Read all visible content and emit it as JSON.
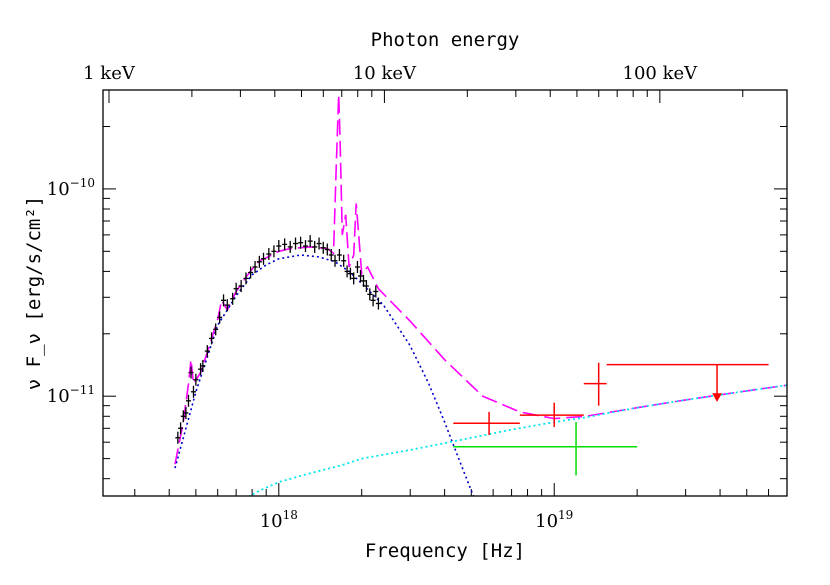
{
  "chart_data": {
    "type": "scatter",
    "title": "",
    "xlabel": "Frequency [Hz]",
    "ylabel": "ν F_ν [erg/s/cm²]",
    "top_xlabel": "Photon energy",
    "x_scale": "log",
    "y_scale": "log",
    "xlim": [
      2.3e+17,
      7e+19
    ],
    "ylim": [
      3.3e-12,
      3e-10
    ],
    "x_tick_labels": [
      {
        "value": 1e+18,
        "base": "10",
        "exp": "18"
      },
      {
        "value": 1e+19,
        "base": "10",
        "exp": "19"
      }
    ],
    "y_tick_labels": [
      {
        "value": 1e-11,
        "base": "10",
        "exp": "−11"
      },
      {
        "value": 1e-10,
        "base": "10",
        "exp": "−10"
      }
    ],
    "top_tick_labels": [
      {
        "value_hz": 2.418e+17,
        "label": "1 keV"
      },
      {
        "value_hz": 2.418e+18,
        "label": "10 keV"
      },
      {
        "value_hz": 2.418e+19,
        "label": "100 keV"
      }
    ],
    "colors": {
      "total_model": "#ff00ff",
      "blue_component": "#0000cc",
      "cyan_component": "#00e5ee",
      "red_points": "#ff0000",
      "green_point": "#00dd00",
      "black_points": "#000000"
    },
    "series": [
      {
        "kind": "total-model-dashed",
        "points": [
          [
            4.2e+17,
            4.7e-12
          ],
          [
            4.5e+17,
            7.5e-12
          ],
          [
            4.7e+17,
            1.15e-11
          ],
          [
            4.8e+17,
            1.5e-11
          ],
          [
            4.9e+17,
            1.15e-11
          ],
          [
            5.2e+17,
            1.3e-11
          ],
          [
            5.6e+17,
            1.75e-11
          ],
          [
            6e+17,
            2.35e-11
          ],
          [
            6.2e+17,
            2.9e-11
          ],
          [
            6.5e+17,
            2.6e-11
          ],
          [
            7e+17,
            3.2e-11
          ],
          [
            7.6e+17,
            3.75e-11
          ],
          [
            8e+17,
            4.1e-11
          ],
          [
            8.5e+17,
            4.5e-11
          ],
          [
            9e+17,
            4.65e-11
          ],
          [
            1e+18,
            5e-11
          ],
          [
            1.1e+18,
            5.15e-11
          ],
          [
            1.3e+18,
            5.25e-11
          ],
          [
            1.5e+18,
            5.15e-11
          ],
          [
            1.58e+18,
            4.9e-11
          ],
          [
            1.62e+18,
            1.4e-10
          ],
          [
            1.65e+18,
            2.85e-10
          ],
          [
            1.67e+18,
            1.7e-10
          ],
          [
            1.7e+18,
            6e-11
          ],
          [
            1.75e+18,
            7.5e-11
          ],
          [
            1.8e+18,
            4.2e-11
          ],
          [
            1.87e+18,
            4.8e-11
          ],
          [
            1.91e+18,
            8.5e-11
          ],
          [
            1.95e+18,
            6e-11
          ],
          [
            2e+18,
            3.9e-11
          ],
          [
            2.1e+18,
            4.2e-11
          ],
          [
            2.3e+18,
            3.3e-11
          ],
          [
            3e+18,
            2.3e-11
          ],
          [
            4e+18,
            1.5e-11
          ],
          [
            5.5e+18,
            1e-11
          ],
          [
            7.5e+18,
            8.4e-12
          ],
          [
            1e+19,
            7.8e-12
          ],
          [
            1.3e+19,
            8e-12
          ],
          [
            2e+19,
            8.8e-12
          ],
          [
            3e+19,
            9.6e-12
          ],
          [
            5e+19,
            1.06e-11
          ],
          [
            7e+19,
            1.13e-11
          ]
        ]
      },
      {
        "kind": "blue-component-dotted",
        "points": [
          [
            4.2e+17,
            4.5e-12
          ],
          [
            5e+17,
            1.05e-11
          ],
          [
            6e+17,
            2.2e-11
          ],
          [
            7e+17,
            3.05e-11
          ],
          [
            8e+17,
            3.85e-11
          ],
          [
            9e+17,
            4.3e-11
          ],
          [
            1e+18,
            4.6e-11
          ],
          [
            1.2e+18,
            4.8e-11
          ],
          [
            1.4e+18,
            4.7e-11
          ],
          [
            1.6e+18,
            4.45e-11
          ],
          [
            1.8e+18,
            4e-11
          ],
          [
            2e+18,
            3.5e-11
          ],
          [
            2.4e+18,
            2.75e-11
          ],
          [
            3e+18,
            1.75e-11
          ],
          [
            3.5e+18,
            1.15e-11
          ],
          [
            4e+18,
            7.5e-12
          ],
          [
            4.5e+18,
            5e-12
          ],
          [
            5e+18,
            3.5e-12
          ],
          [
            5.3e+18,
            2.9e-12
          ]
        ]
      },
      {
        "kind": "cyan-component-dotted",
        "points": [
          [
            7.2e+17,
            3.1e-12
          ],
          [
            8.5e+17,
            3.5e-12
          ],
          [
            1e+18,
            3.85e-12
          ],
          [
            1.3e+18,
            4.25e-12
          ],
          [
            1.7e+18,
            4.65e-12
          ],
          [
            2e+18,
            5e-12
          ],
          [
            3e+18,
            5.5e-12
          ],
          [
            5e+18,
            6.3e-12
          ],
          [
            7e+18,
            6.9e-12
          ],
          [
            1e+19,
            7.5e-12
          ],
          [
            1.3e+19,
            7.9e-12
          ],
          [
            2e+19,
            8.8e-12
          ],
          [
            3e+19,
            9.6e-12
          ],
          [
            5e+19,
            1.06e-11
          ],
          [
            7e+19,
            1.13e-11
          ]
        ]
      },
      {
        "kind": "black-data-points",
        "points": [
          [
            4.3e+17,
            6.3e-12
          ],
          [
            4.4e+17,
            7e-12
          ],
          [
            4.5e+17,
            8e-12
          ],
          [
            4.6e+17,
            8.3e-12
          ],
          [
            4.7e+17,
            9.5e-12
          ],
          [
            4.8e+17,
            1.3e-11
          ],
          [
            4.9e+17,
            1.05e-11
          ],
          [
            5e+17,
            1.2e-11
          ],
          [
            5.2e+17,
            1.35e-11
          ],
          [
            5.3e+17,
            1.4e-11
          ],
          [
            5.5e+17,
            1.65e-11
          ],
          [
            5.7e+17,
            1.9e-11
          ],
          [
            5.9e+17,
            2.1e-11
          ],
          [
            6.1e+17,
            2.4e-11
          ],
          [
            6.3e+17,
            2.9e-11
          ],
          [
            6.5e+17,
            2.75e-11
          ],
          [
            6.8e+17,
            2.95e-11
          ],
          [
            7e+17,
            3.3e-11
          ],
          [
            7.3e+17,
            3.4e-11
          ],
          [
            7.6e+17,
            3.7e-11
          ],
          [
            7.9e+17,
            3.95e-11
          ],
          [
            8.2e+17,
            4.2e-11
          ],
          [
            8.5e+17,
            4.45e-11
          ],
          [
            8.8e+17,
            4.6e-11
          ],
          [
            9.2e+17,
            4.85e-11
          ],
          [
            9.6e+17,
            5e-11
          ],
          [
            1e+18,
            5.3e-11
          ],
          [
            1.05e+18,
            5.4e-11
          ],
          [
            1.1e+18,
            5.25e-11
          ],
          [
            1.15e+18,
            5.45e-11
          ],
          [
            1.2e+18,
            5.5e-11
          ],
          [
            1.25e+18,
            5.3e-11
          ],
          [
            1.3e+18,
            5.6e-11
          ],
          [
            1.35e+18,
            5.25e-11
          ],
          [
            1.4e+18,
            5.45e-11
          ],
          [
            1.45e+18,
            5.2e-11
          ],
          [
            1.5e+18,
            5.1e-11
          ],
          [
            1.55e+18,
            4.8e-11
          ],
          [
            1.6e+18,
            4.5e-11
          ],
          [
            1.66e+18,
            4.8e-11
          ],
          [
            1.72e+18,
            4.5e-11
          ],
          [
            1.77e+18,
            4e-11
          ],
          [
            1.82e+18,
            3.9e-11
          ],
          [
            1.87e+18,
            3.7e-11
          ],
          [
            1.93e+18,
            4.2e-11
          ],
          [
            1.98e+18,
            3.8e-11
          ],
          [
            2.03e+18,
            3.6e-11
          ],
          [
            2.08e+18,
            3.4e-11
          ],
          [
            2.14e+18,
            3.1e-11
          ],
          [
            2.2e+18,
            2.9e-11
          ],
          [
            2.25e+18,
            3.2e-11
          ],
          [
            2.3e+18,
            2.8e-11
          ]
        ]
      }
    ],
    "red_points": [
      {
        "x": 5.8e+18,
        "x_lo": 4.3e+18,
        "x_hi": 7.5e+18,
        "y": 7.4e-12,
        "y_lo": 6.5e-12,
        "y_hi": 8.4e-12
      },
      {
        "x": 1e+19,
        "x_lo": 7.5e+18,
        "x_hi": 1.28e+19,
        "y": 8.1e-12,
        "y_lo": 7.1e-12,
        "y_hi": 9.3e-12
      },
      {
        "x": 1.45e+19,
        "x_lo": 1.28e+19,
        "x_hi": 1.55e+19,
        "y": 1.15e-11,
        "y_lo": 9e-12,
        "y_hi": 1.45e-11
      },
      {
        "x": 3.9e+19,
        "x_lo": 1.55e+19,
        "x_hi": 6e+19,
        "y": 1.42e-11,
        "upper_limit_to": 9.5e-12
      }
    ],
    "green_points": [
      {
        "x": 1.2e+19,
        "x_lo": 4.3e+18,
        "x_hi": 2e+19,
        "y": 5.7e-12,
        "y_lo": 4.15e-12,
        "y_hi": 7.5e-12
      }
    ]
  }
}
